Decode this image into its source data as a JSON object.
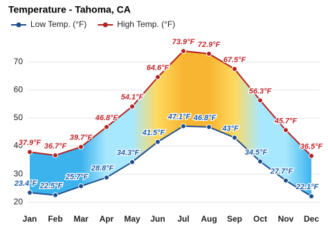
{
  "chart_data": {
    "type": "line",
    "title": "Temperature - Tahoma, CA",
    "categories": [
      "Jan",
      "Feb",
      "Mar",
      "Apr",
      "May",
      "Jun",
      "Jul",
      "Aug",
      "Sep",
      "Oct",
      "Nov",
      "Dec"
    ],
    "series": [
      {
        "name": "Low Temp. (°F)",
        "color": "#1f4e8c",
        "values": [
          23.4,
          22.5,
          25.7,
          28.8,
          34.3,
          41.5,
          47.1,
          46.8,
          43,
          34.5,
          27.7,
          22.1
        ],
        "value_labels": [
          "23.4°F",
          "22.5°F",
          "25.7°F",
          "28.8°F",
          "34.3°F",
          "41.5°F",
          "47.1°F",
          "46.8°F",
          "43°F",
          "34.5°F",
          "27.7°F",
          "22.1°F"
        ]
      },
      {
        "name": "High Temp. (°F)",
        "color": "#b22222",
        "values": [
          37.9,
          36.7,
          39.7,
          46.8,
          54.1,
          64.6,
          73.9,
          72.9,
          67.5,
          56.3,
          45.7,
          36.5
        ],
        "value_labels": [
          "37.9°F",
          "36.7°F",
          "39.7°F",
          "46.8°F",
          "54.1°F",
          "64.6°F",
          "73.9°F",
          "72.9°F",
          "67.5°F",
          "56.3°F",
          "45.7°F",
          "36.5°F"
        ]
      }
    ],
    "ylim": [
      17,
      81
    ],
    "yticks": [
      20,
      30,
      40,
      50,
      60,
      70
    ],
    "grid": true,
    "legend": "top-left"
  }
}
